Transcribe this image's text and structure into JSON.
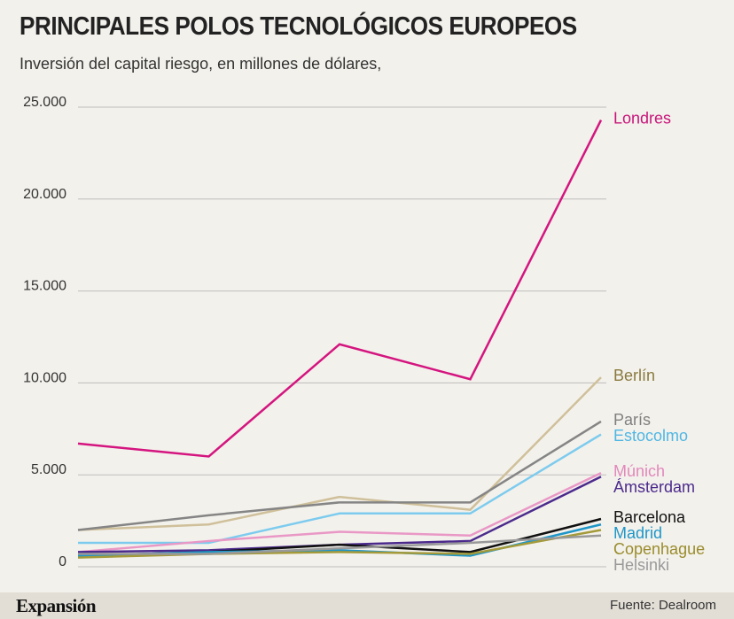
{
  "header": {
    "title": "PRINCIPALES POLOS TECNOLÓGICOS EUROPEOS",
    "subtitle": "Inversión del capital riesgo, en millones de dólares,"
  },
  "footer": {
    "brand": "Expansión",
    "source": "Fuente: Dealroom"
  },
  "chart_data": {
    "type": "line",
    "title": "PRINCIPALES POLOS TECNOLÓGICOS EUROPEOS",
    "subtitle": "Inversión del capital riesgo, en millones de dólares,",
    "xlabel": "",
    "ylabel": "",
    "ylim": [
      0,
      25000
    ],
    "yticks": [
      0,
      5000,
      10000,
      15000,
      20000,
      25000
    ],
    "ytick_labels": [
      "0",
      "5.000",
      "10.000",
      "15.000",
      "20.000",
      "25.000"
    ],
    "grid": true,
    "legend": "direct labels at right end of lines",
    "x": [
      1,
      2,
      3,
      4,
      5
    ],
    "series": [
      {
        "name": "Londres",
        "color": "#d4157f",
        "label_color": "#c8157a",
        "values": [
          6700,
          6000,
          12100,
          10200,
          24300
        ]
      },
      {
        "name": "Berlín",
        "color": "#cfc09a",
        "label_color": "#8a7a3e",
        "values": [
          2000,
          2300,
          3800,
          3100,
          10300
        ]
      },
      {
        "name": "París",
        "color": "#858585",
        "label_color": "#808080",
        "values": [
          2000,
          2800,
          3500,
          3500,
          7900
        ]
      },
      {
        "name": "Estocolmo",
        "color": "#7ccbee",
        "label_color": "#4fb7e4",
        "values": [
          1300,
          1300,
          2900,
          2900,
          7200
        ]
      },
      {
        "name": "Múnich",
        "color": "#e998c6",
        "label_color": "#e288bb",
        "values": [
          800,
          1400,
          1900,
          1700,
          5100
        ]
      },
      {
        "name": "Ámsterdam",
        "color": "#4b2a8c",
        "label_color": "#4b2a8c",
        "values": [
          800,
          900,
          1200,
          1400,
          4900
        ]
      },
      {
        "name": "Barcelona",
        "color": "#111111",
        "label_color": "#111111",
        "values": [
          600,
          800,
          1200,
          800,
          2600
        ]
      },
      {
        "name": "Madrid",
        "color": "#1e96c8",
        "label_color": "#1e96c8",
        "values": [
          600,
          800,
          900,
          600,
          2300
        ]
      },
      {
        "name": "Copenhague",
        "color": "#a49a3a",
        "label_color": "#9a8c2c",
        "values": [
          500,
          700,
          800,
          700,
          2000
        ]
      },
      {
        "name": "Helsinki",
        "color": "#999999",
        "label_color": "#999999",
        "values": [
          700,
          700,
          1000,
          1300,
          1700
        ]
      }
    ]
  }
}
